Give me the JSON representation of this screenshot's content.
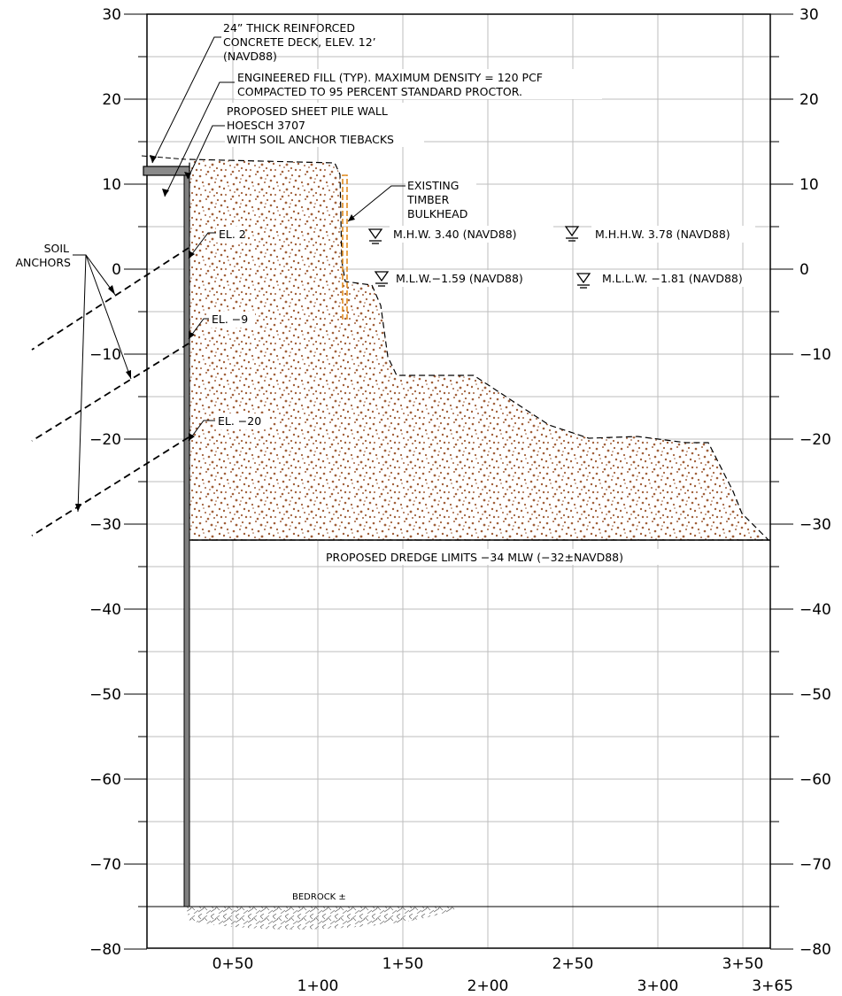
{
  "elevation_axis": {
    "labels": [
      "30",
      "20",
      "10",
      "0",
      "−10",
      "−20",
      "−30",
      "−40",
      "−50",
      "−60",
      "−70",
      "−80"
    ],
    "values": [
      30,
      20,
      10,
      0,
      -10,
      -20,
      -30,
      -40,
      -50,
      -60,
      -70,
      -80
    ],
    "range": [
      -80,
      30
    ]
  },
  "station_axis": {
    "lower_row": [
      "1+00",
      "2+00",
      "3+00",
      "3+65"
    ],
    "upper_row": [
      "0+50",
      "1+50",
      "2+50",
      "3+50"
    ]
  },
  "callouts": {
    "deck": [
      "24” THICK REINFORCED",
      "CONCRETE DECK, ELEV. 12’",
      "(NAVD88)"
    ],
    "fill": [
      "ENGINEERED FILL (TYP). MAXIMUM DENSITY = 120 PCF",
      "COMPACTED TO 95 PERCENT STANDARD PROCTOR."
    ],
    "sheet_pile": [
      "PROPOSED SHEET PILE WALL",
      "HOESCH 3707",
      "WITH SOIL ANCHOR TIEBACKS"
    ],
    "timber": [
      "EXISTING",
      "TIMBER",
      "BULKHEAD"
    ],
    "soil_anchors": [
      "SOIL",
      "ANCHORS"
    ],
    "anchor_elevations": [
      "EL. 2",
      "EL. −9",
      "EL. −20"
    ],
    "dredge": "PROPOSED DREDGE LIMITS −34 MLW (−32±NAVD88)",
    "bedrock": "BEDROCK ±"
  },
  "water_levels": [
    {
      "label": "M.H.W.  3.40 (NAVD88)"
    },
    {
      "label": "M.H.H.W. 3.78 (NAVD88)"
    },
    {
      "label": "M.L.W.−1.59 (NAVD88)"
    },
    {
      "label": "M.L.L.W.  −1.81 (NAVD88)"
    }
  ],
  "colors": {
    "fill_speckle": "#a0603a",
    "timber_bulkhead": "#e08a1e",
    "sheet_pile": "#808080",
    "grid": "#bdbdbd"
  }
}
